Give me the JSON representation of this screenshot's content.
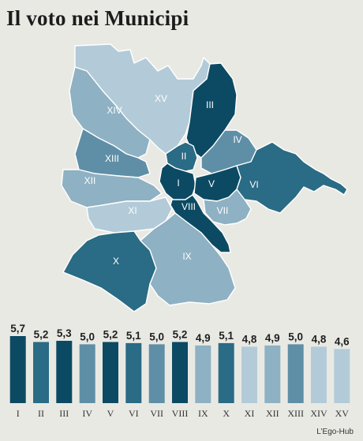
{
  "title": "Il voto nei Municipi",
  "credit": "L’Ego-Hub",
  "colors": {
    "darkest": "#0c4a63",
    "dark": "#2a6b85",
    "medium": "#5f8fa6",
    "light": "#8eb1c3",
    "lightest": "#b3cbd8"
  },
  "map_labels": [
    "I",
    "II",
    "III",
    "IV",
    "V",
    "VI",
    "VII",
    "VIII",
    "IX",
    "X",
    "XI",
    "XII",
    "XIII",
    "XIV",
    "XV"
  ],
  "chart_data": {
    "type": "bar",
    "title": "",
    "xlabel": "",
    "ylabel": "",
    "categories": [
      "I",
      "II",
      "III",
      "IV",
      "V",
      "VI",
      "VII",
      "VIII",
      "IX",
      "X",
      "XI",
      "XII",
      "XIII",
      "XIV",
      "XV"
    ],
    "values": [
      5.7,
      5.2,
      5.3,
      5.0,
      5.2,
      5.1,
      5.0,
      5.2,
      4.9,
      5.1,
      4.8,
      4.9,
      5.0,
      4.8,
      4.6
    ],
    "value_labels": [
      "5,7",
      "5,2",
      "5,3",
      "5,0",
      "5,2",
      "5,1",
      "5,0",
      "5,2",
      "4,9",
      "5,1",
      "4,8",
      "4,9",
      "5,0",
      "4,8",
      "4,6"
    ],
    "bar_colors": [
      "#0c4a63",
      "#2a6b85",
      "#0c4a63",
      "#5f8fa6",
      "#0c4a63",
      "#2a6b85",
      "#5f8fa6",
      "#0c4a63",
      "#8eb1c3",
      "#2a6b85",
      "#b3cbd8",
      "#8eb1c3",
      "#5f8fa6",
      "#b3cbd8",
      "#b3cbd8"
    ],
    "ylim": [
      0,
      5.7
    ],
    "grid": false,
    "legend": "none"
  }
}
